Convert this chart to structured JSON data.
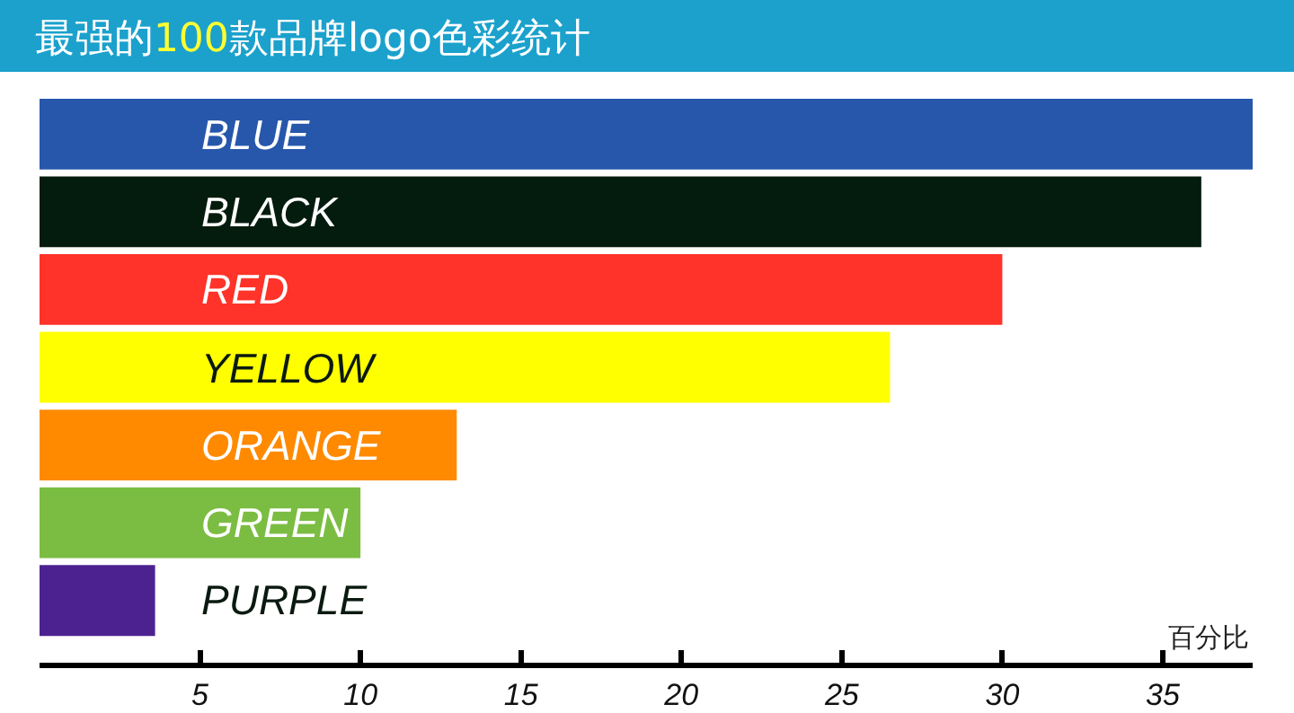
{
  "chart_data": {
    "type": "bar",
    "orientation": "horizontal",
    "title": "最强的100款品牌logo色彩统计",
    "xlabel": "百分比",
    "categories": [
      "BLUE",
      "BLACK",
      "RED",
      "YELLOW",
      "ORANGE",
      "GREEN",
      "PURPLE"
    ],
    "values": [
      37.8,
      36.2,
      30,
      26.5,
      13,
      10,
      3.6
    ],
    "colors": [
      "#2757ab",
      "#041c0e",
      "#ff3329",
      "#ffff00",
      "#ff8a00",
      "#7bbd42",
      "#4c2291"
    ],
    "xlim": [
      0,
      37.8
    ],
    "xticks": [
      5,
      10,
      15,
      20,
      25,
      30,
      35
    ],
    "grid": false
  }
}
